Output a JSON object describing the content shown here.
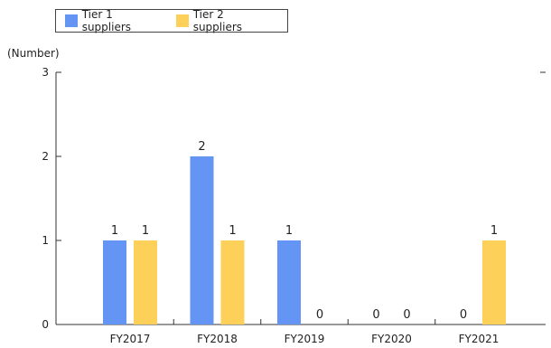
{
  "chart_data": {
    "type": "bar",
    "unit_label": "(Number)",
    "categories": [
      "FY2017",
      "FY2018",
      "FY2019",
      "FY2020",
      "FY2021"
    ],
    "series": [
      {
        "name": "Tier 1 suppliers",
        "color": "#6495f5",
        "values": [
          1,
          2,
          1,
          0,
          0
        ]
      },
      {
        "name": "Tier 2 suppliers",
        "color": "#fdd05a",
        "values": [
          1,
          1,
          0,
          0,
          1
        ]
      }
    ],
    "ylim": [
      0,
      3
    ],
    "yticks": [
      0,
      1,
      2,
      3
    ],
    "grid": false,
    "legend_position": "top-left"
  }
}
